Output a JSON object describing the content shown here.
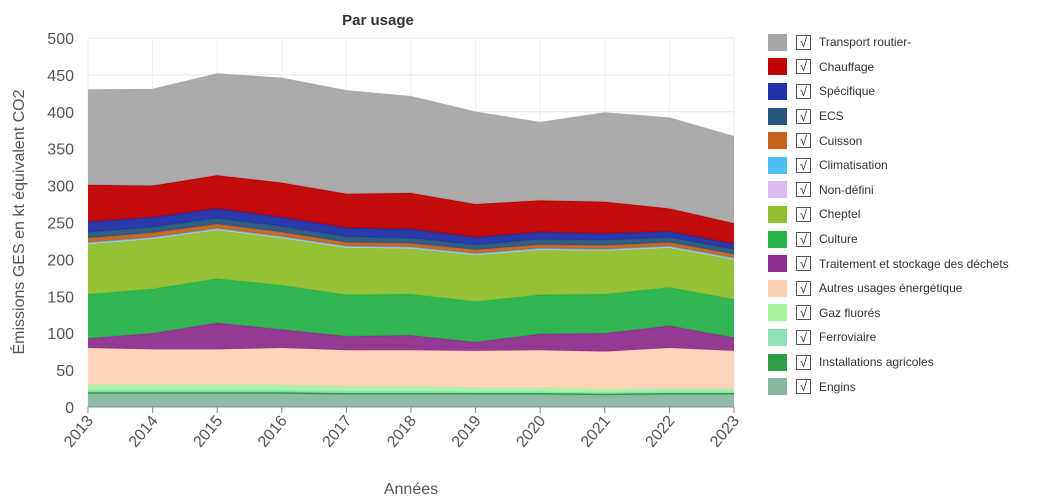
{
  "chart_data": {
    "type": "area",
    "stacked": true,
    "title": "Par usage",
    "xlabel": "Années",
    "ylabel": "Émissions GES en kt équivalent CO2",
    "ylim": [
      0,
      500
    ],
    "yticks": [
      0,
      50,
      100,
      150,
      200,
      250,
      300,
      350,
      400,
      450,
      500
    ],
    "grid": true,
    "legend_position": "right",
    "x": [
      "2013",
      "2014",
      "2015",
      "2016",
      "2017",
      "2018",
      "2019",
      "2020",
      "2021",
      "2022",
      "2023"
    ],
    "series": [
      {
        "name": "Engins",
        "color": "#88b8a0",
        "checked": true,
        "values": [
          18,
          18,
          18,
          18,
          17,
          17,
          17,
          17,
          16,
          17,
          17
        ]
      },
      {
        "name": "Installations agricoles",
        "color": "#2f9e44",
        "checked": true,
        "values": [
          2,
          2,
          2,
          2,
          2,
          2,
          2,
          2,
          2,
          2,
          2
        ]
      },
      {
        "name": "Ferroviaire",
        "color": "#8ee0b8",
        "checked": true,
        "values": [
          3,
          3,
          3,
          3,
          3,
          3,
          2,
          2,
          2,
          2,
          2
        ]
      },
      {
        "name": "Gaz fluorés",
        "color": "#a6f3a0",
        "checked": true,
        "values": [
          7,
          7,
          7,
          7,
          6,
          6,
          5,
          5,
          4,
          4,
          4
        ]
      },
      {
        "name": "Autres usages énergétique",
        "color": "#fdd2b4",
        "checked": true,
        "values": [
          50,
          48,
          48,
          50,
          49,
          49,
          50,
          51,
          51,
          55,
          51
        ]
      },
      {
        "name": "Traitement et stockage des déchets",
        "color": "#8e2f8e",
        "checked": true,
        "values": [
          13,
          22,
          36,
          25,
          19,
          20,
          12,
          22,
          25,
          30,
          18
        ]
      },
      {
        "name": "Culture",
        "color": "#27b24a",
        "checked": true,
        "values": [
          60,
          60,
          60,
          60,
          56,
          56,
          55,
          53,
          53,
          52,
          52
        ]
      },
      {
        "name": "Cheptel",
        "color": "#8fbf2c",
        "checked": true,
        "values": [
          68,
          68,
          66,
          64,
          64,
          62,
          63,
          61,
          59,
          54,
          54
        ]
      },
      {
        "name": "Non-défini",
        "color": "#dcbcf0",
        "checked": true,
        "values": [
          1,
          1,
          1,
          1,
          1,
          1,
          1,
          1,
          1,
          1,
          1
        ]
      },
      {
        "name": "Climatisation",
        "color": "#4cbff0",
        "checked": true,
        "values": [
          1,
          1,
          1,
          1,
          1,
          1,
          1,
          1,
          1,
          1,
          1
        ]
      },
      {
        "name": "Cuisson",
        "color": "#c5621e",
        "checked": true,
        "values": [
          6,
          6,
          6,
          6,
          5,
          5,
          5,
          5,
          5,
          5,
          5
        ]
      },
      {
        "name": "ECS",
        "color": "#27557c",
        "checked": true,
        "values": [
          8,
          8,
          8,
          8,
          8,
          7,
          7,
          7,
          7,
          7,
          7
        ]
      },
      {
        "name": "Spécifique",
        "color": "#2130a8",
        "checked": true,
        "values": [
          14,
          13,
          13,
          12,
          12,
          12,
          10,
          10,
          9,
          8,
          7
        ]
      },
      {
        "name": "Chauffage",
        "color": "#c00000",
        "checked": true,
        "values": [
          50,
          43,
          45,
          47,
          46,
          49,
          45,
          43,
          43,
          31,
          28
        ]
      },
      {
        "name": "Transport routier-",
        "color": "#a6a6a6",
        "checked": true,
        "values": [
          128,
          130,
          137,
          141,
          139,
          130,
          124,
          105,
          120,
          122,
          117
        ]
      }
    ]
  }
}
